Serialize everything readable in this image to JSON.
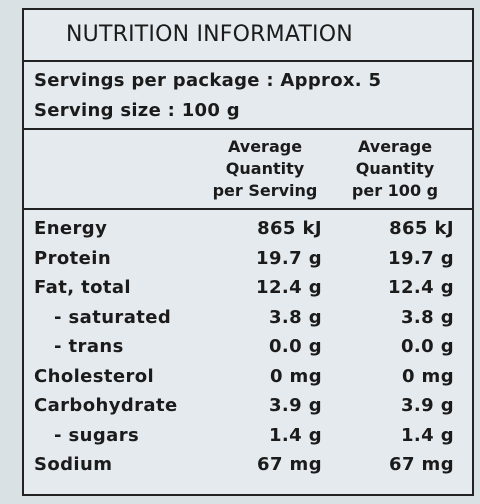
{
  "title": "NUTRITION INFORMATION",
  "servings": [
    "Servings per package : Approx. 5",
    "Serving size : 100 g"
  ],
  "table": {
    "headers": [
      [
        "Average",
        "Quantity",
        "per Serving"
      ],
      [
        "Average",
        "Quantity",
        "per 100 g"
      ]
    ],
    "rows": [
      [
        "Energy",
        "865 kJ",
        "865 kJ"
      ],
      [
        "Protein",
        "19.7 g",
        "19.7 g"
      ],
      [
        "Fat, total",
        "12.4 g",
        "12.4 g"
      ],
      [
        "- saturated",
        "3.8 g",
        "3.8 g"
      ],
      [
        "- trans",
        "0.0 g",
        "0.0 g"
      ],
      [
        "Cholesterol",
        "0 mg",
        "0 mg"
      ],
      [
        "Carbohydrate",
        "3.9 g",
        "3.9 g"
      ],
      [
        "- sugars",
        "1.4 g",
        "1.4 g"
      ],
      [
        "Sodium",
        "67 mg",
        "67 mg"
      ]
    ]
  }
}
